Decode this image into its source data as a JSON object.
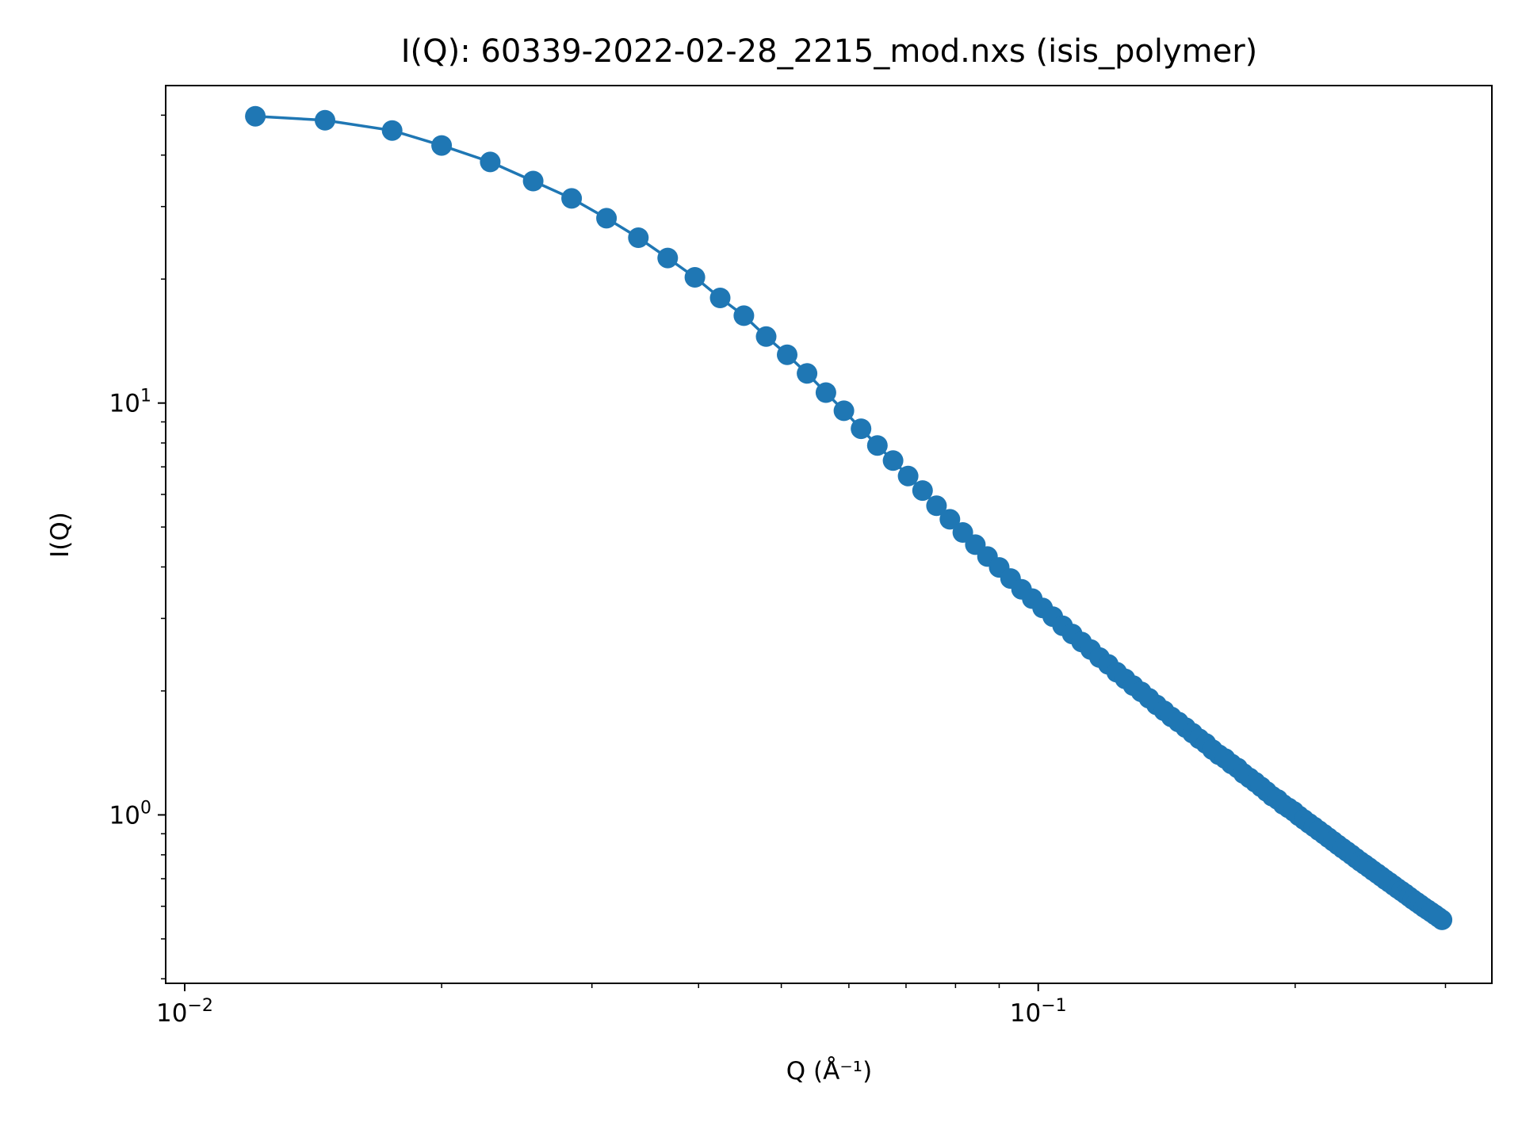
{
  "chart_data": {
    "type": "line",
    "title": "I(Q): 60339-2022-02-28_2215_mod.nxs (isis_polymer)",
    "xlabel": "Q (Å⁻¹)",
    "ylabel": "I(Q)",
    "x_scale": "log",
    "y_scale": "log",
    "xlim": [
      0.0095,
      0.34
    ],
    "ylim": [
      0.39,
      59
    ],
    "grid": false,
    "legend": null,
    "x_ticks": [
      {
        "value": 0.01,
        "base": "10",
        "exp": "−2"
      },
      {
        "value": 0.1,
        "base": "10",
        "exp": "−1"
      }
    ],
    "y_ticks": [
      {
        "value": 1,
        "base": "10",
        "exp": "0"
      },
      {
        "value": 10,
        "base": "10",
        "exp": "1"
      }
    ],
    "series": [
      {
        "color": "#1f77b4",
        "marker": "circle",
        "x": [
          0.0121,
          0.0146,
          0.0175,
          0.02,
          0.0228,
          0.0256,
          0.0284,
          0.0312,
          0.034,
          0.0368,
          0.0396,
          0.0424,
          0.0452,
          0.048,
          0.0508,
          0.0536,
          0.0564,
          0.0592,
          0.062,
          0.0648,
          0.0676,
          0.0704,
          0.0732,
          0.076,
          0.0788,
          0.0816,
          0.0844,
          0.0872,
          0.09,
          0.0928,
          0.0956,
          0.0984,
          0.1012,
          0.104,
          0.1068,
          0.1096,
          0.1124,
          0.1152,
          0.118,
          0.1208,
          0.1236,
          0.1264,
          0.1292,
          0.132,
          0.1348,
          0.1376,
          0.1404,
          0.1432,
          0.146,
          0.1488,
          0.1516,
          0.1544,
          0.1572,
          0.16,
          0.1628,
          0.1656,
          0.1684,
          0.1712,
          0.174,
          0.1768,
          0.1796,
          0.1824,
          0.1852,
          0.188,
          0.1908,
          0.1936,
          0.1964,
          0.1992,
          0.202,
          0.2048,
          0.2076,
          0.2104,
          0.2132,
          0.216,
          0.2188,
          0.2216,
          0.2244,
          0.2272,
          0.23,
          0.2328,
          0.2356,
          0.2384,
          0.2412,
          0.244,
          0.2468,
          0.2496,
          0.2524,
          0.2552,
          0.258,
          0.2608,
          0.2636,
          0.2664,
          0.2692,
          0.272,
          0.2748,
          0.2776,
          0.2804,
          0.2832,
          0.286,
          0.2888,
          0.2916,
          0.2944,
          0.2972
        ],
        "y": [
          49.7,
          48.6,
          45.9,
          42.2,
          38.5,
          34.6,
          31.4,
          28.1,
          25.2,
          22.5,
          20.2,
          18.0,
          16.3,
          14.5,
          13.1,
          11.8,
          10.6,
          9.58,
          8.66,
          7.89,
          7.25,
          6.65,
          6.13,
          5.63,
          5.22,
          4.85,
          4.53,
          4.24,
          3.99,
          3.75,
          3.53,
          3.35,
          3.18,
          3.03,
          2.88,
          2.75,
          2.63,
          2.52,
          2.41,
          2.32,
          2.22,
          2.14,
          2.06,
          1.99,
          1.92,
          1.85,
          1.79,
          1.73,
          1.68,
          1.63,
          1.58,
          1.53,
          1.49,
          1.44,
          1.4,
          1.37,
          1.33,
          1.3,
          1.26,
          1.23,
          1.2,
          1.17,
          1.14,
          1.11,
          1.09,
          1.06,
          1.04,
          1.02,
          0.995,
          0.974,
          0.954,
          0.935,
          0.916,
          0.898,
          0.88,
          0.863,
          0.846,
          0.83,
          0.815,
          0.8,
          0.785,
          0.771,
          0.758,
          0.745,
          0.732,
          0.72,
          0.708,
          0.696,
          0.685,
          0.674,
          0.663,
          0.653,
          0.643,
          0.633,
          0.623,
          0.614,
          0.605,
          0.596,
          0.588,
          0.58,
          0.572,
          0.564,
          0.556
        ]
      }
    ]
  }
}
